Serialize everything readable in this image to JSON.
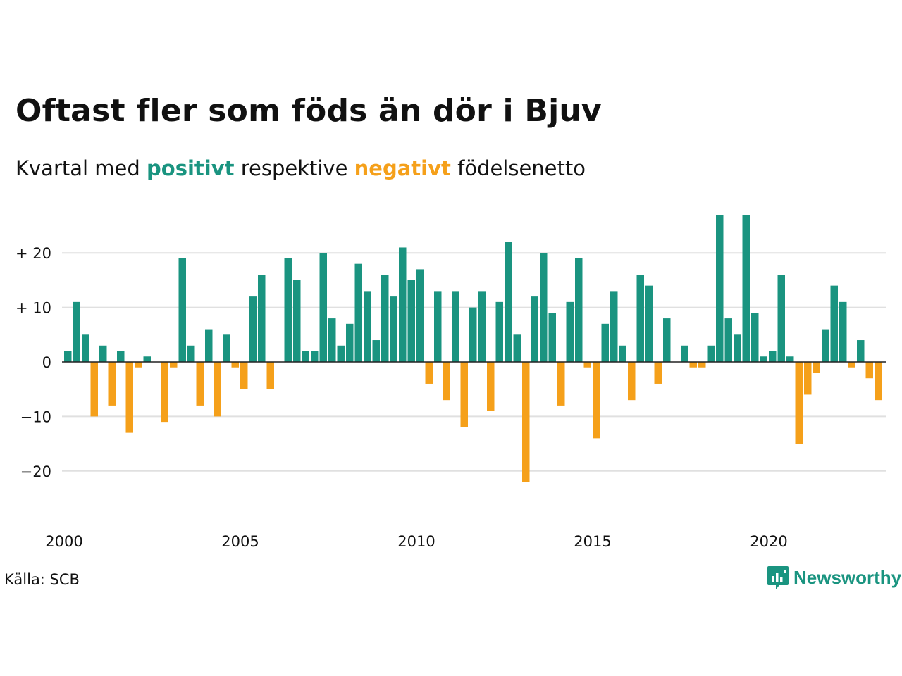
{
  "header": {
    "title": "Oftast fler som föds än dör i Bjuv",
    "subtitle_prefix": "Kvartal med ",
    "subtitle_positive": "positivt",
    "subtitle_middle": " respektive ",
    "subtitle_negative": "negativt",
    "subtitle_suffix": " födelsenetto"
  },
  "footer": {
    "source": "Källa: SCB",
    "brand": "Newsworthy",
    "brand_icon": "newsworthy-logo-icon"
  },
  "colors": {
    "positive": "#1a9480",
    "negative": "#f5a01a",
    "grid": "#e0e0e0",
    "zero_line": "#222222"
  },
  "chart_data": {
    "type": "bar",
    "title": "Oftast fler som föds än dör i Bjuv",
    "subtitle": "Kvartal med positivt respektive negativt födelsenetto",
    "xlabel": "",
    "ylabel": "",
    "x_start": 2000,
    "periods_per_year": 4,
    "x_ticks": [
      2000,
      2005,
      2010,
      2015,
      2020
    ],
    "x_tick_labels": [
      "2000",
      "2005",
      "2010",
      "2015",
      "2020"
    ],
    "y_ticks": [
      20,
      10,
      0,
      -10,
      -20
    ],
    "y_tick_labels": [
      "+ 20",
      "+ 10",
      "0",
      "−10",
      "−20"
    ],
    "ylim": [
      -28,
      27
    ],
    "grid": true,
    "values": [
      2,
      11,
      5,
      -10,
      3,
      -8,
      2,
      -13,
      -1,
      1,
      0,
      -11,
      -1,
      19,
      3,
      -8,
      6,
      -10,
      5,
      -1,
      -5,
      12,
      16,
      -5,
      0,
      19,
      15,
      2,
      2,
      20,
      8,
      3,
      7,
      18,
      13,
      4,
      16,
      12,
      21,
      15,
      17,
      -4,
      13,
      -7,
      13,
      -12,
      10,
      13,
      -9,
      11,
      22,
      5,
      -22,
      12,
      20,
      9,
      -8,
      11,
      19,
      -1,
      -14,
      7,
      13,
      3,
      -7,
      16,
      14,
      -4,
      8,
      0,
      3,
      -1,
      -1,
      3,
      27,
      8,
      5,
      27,
      9,
      1,
      2,
      16,
      1,
      -15,
      -6,
      -2,
      6,
      14,
      11,
      -1,
      4,
      -3,
      -7
    ]
  }
}
